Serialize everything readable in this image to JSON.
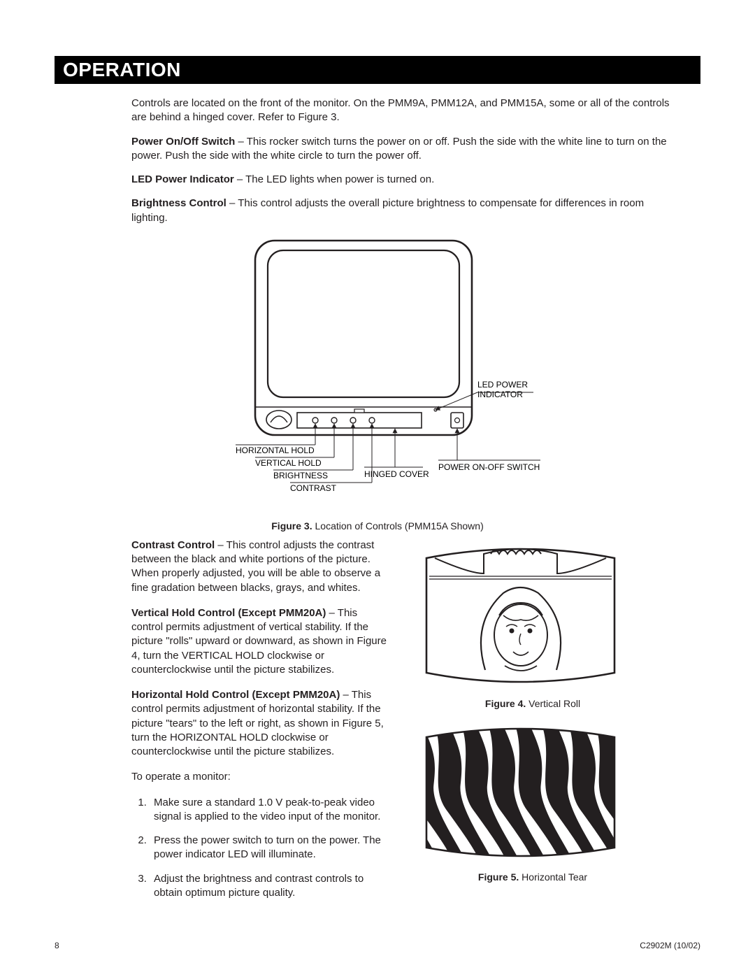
{
  "section_title": "OPERATION",
  "para_intro": "Controls are located on the front of the monitor. On the PMM9A, PMM12A, and PMM15A, some or all of the controls are behind a hinged cover. Refer to Figure 3.",
  "power_switch_label": "Power On/Off Switch",
  "power_switch_text": " – This rocker switch turns the power on or off. Push the side with the white line to turn on the power. Push the side with the white circle to turn the power off.",
  "led_label": "LED Power Indicator",
  "led_text": " – The LED lights when power is turned on.",
  "brightness_label": "Brightness Control",
  "brightness_text": " – This control adjusts the overall picture brightness to compensate for differences in room lighting.",
  "fig3": {
    "caption_bold": "Figure 3.",
    "caption_rest": "  Location of Controls (PMM15A Shown)",
    "labels": {
      "led_power": "LED POWER",
      "indicator": "INDICATOR",
      "power_switch": "POWER ON-OFF SWITCH",
      "hinged_cover": "HINGED COVER",
      "horizontal_hold": "HORIZONTAL HOLD",
      "vertical_hold": "VERTICAL HOLD",
      "brightness": "BRIGHTNESS",
      "contrast": "CONTRAST"
    },
    "colors": {
      "stroke": "#231f20",
      "fill": "#ffffff"
    },
    "stroke_width": 2.2,
    "label_fontsize": 12
  },
  "contrast_label": "Contrast Control",
  "contrast_text": " – This control adjusts the contrast between the black and white portions of the picture. When properly adjusted, you will be able to observe a fine gradation between blacks, grays, and whites.",
  "vhold_label": "Vertical Hold Control (Except PMM20A)",
  "vhold_text": " – This control permits adjustment of vertical stability. If the picture \"rolls\" upward or downward, as shown in Figure 4, turn the VERTICAL HOLD clockwise or counterclockwise until the picture stabilizes.",
  "hhold_label": "Horizontal Hold Control (Except PMM20A)",
  "hhold_text": " – This control permits adjustment of horizontal stability. If the picture \"tears\" to the left or right, as shown in Figure 5, turn the HORIZONTAL HOLD clockwise or counterclockwise until the picture stabilizes.",
  "operate_intro": "To operate a monitor:",
  "steps": [
    "Make sure a standard 1.0 V peak-to-peak video signal is applied to the video input of the monitor.",
    "Press the power switch to turn on the power. The power indicator LED will illuminate.",
    "Adjust the brightness and contrast controls to obtain optimum picture quality."
  ],
  "fig4": {
    "caption_bold": "Figure 4.",
    "caption_rest": "  Vertical Roll",
    "colors": {
      "stroke": "#231f20",
      "fill": "#ffffff",
      "dark": "#231f20"
    },
    "stroke_width": 2.4
  },
  "fig5": {
    "caption_bold": "Figure 5.",
    "caption_rest": "  Horizontal Tear",
    "colors": {
      "stroke": "#231f20",
      "fill": "#ffffff",
      "dark": "#231f20"
    },
    "stroke_width": 2.4,
    "stripe_count": 9
  },
  "footer": {
    "page": "8",
    "docref": "C2902M (10/02)"
  }
}
